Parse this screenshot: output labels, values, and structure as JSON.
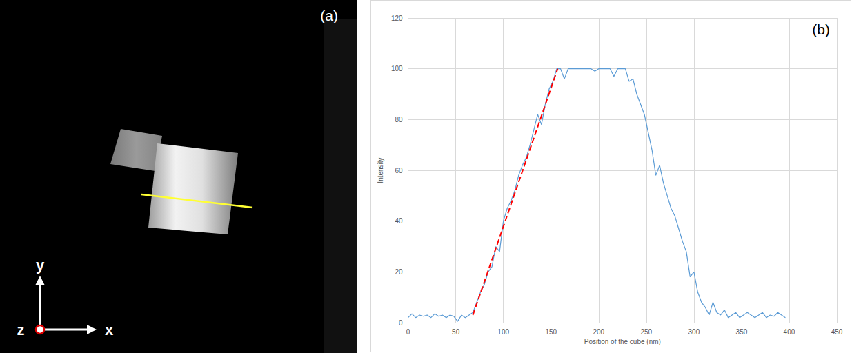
{
  "panel_a": {
    "label": "(a)",
    "axis_labels": {
      "x": "x",
      "y": "y",
      "z": "z"
    }
  },
  "chart_data": {
    "type": "line",
    "annotation": "(b)",
    "x_label": "Position of the cube (nm)",
    "y_label": "Intensity",
    "xlim": [
      0,
      450
    ],
    "xticks": [
      0,
      50,
      100,
      150,
      200,
      250,
      300,
      350,
      400,
      450
    ],
    "ylim": [
      0,
      120
    ],
    "yticks": [
      0,
      20,
      40,
      60,
      80,
      100,
      120
    ],
    "grid": true,
    "series": [
      {
        "color": "#5b9bd5",
        "line_style": "solid",
        "x": [
          0,
          4,
          8,
          12,
          16,
          20,
          24,
          28,
          32,
          36,
          40,
          44,
          48,
          52,
          56,
          60,
          64,
          68,
          72,
          76,
          80,
          84,
          88,
          92,
          96,
          100,
          104,
          108,
          112,
          116,
          120,
          124,
          128,
          132,
          136,
          140,
          144,
          148,
          152,
          156,
          160,
          164,
          168,
          172,
          176,
          180,
          184,
          188,
          192,
          196,
          200,
          204,
          208,
          212,
          216,
          220,
          224,
          228,
          232,
          236,
          240,
          244,
          248,
          252,
          256,
          260,
          264,
          268,
          272,
          276,
          280,
          284,
          288,
          292,
          296,
          300,
          304,
          308,
          312,
          316,
          320,
          324,
          328,
          332,
          336,
          340,
          344,
          348,
          352,
          356,
          360,
          364,
          368,
          372,
          376,
          380,
          384,
          388,
          392,
          396
        ],
        "values": [
          2,
          3.5,
          2,
          3,
          2.5,
          3,
          2,
          3.5,
          2.5,
          3,
          2,
          3,
          2.5,
          0.5,
          3,
          2,
          3,
          4,
          8,
          12,
          15,
          20,
          22,
          30,
          28,
          40,
          45,
          48,
          52,
          58,
          62,
          65,
          70,
          76,
          82,
          78,
          86,
          92,
          95,
          100,
          100,
          96,
          100,
          100,
          100,
          100,
          100,
          100,
          100,
          99,
          100,
          100,
          100,
          100,
          97,
          100,
          100,
          100,
          95,
          96,
          90,
          86,
          82,
          75,
          68,
          58,
          62,
          55,
          50,
          45,
          42,
          37,
          32,
          28,
          18,
          20,
          12,
          8,
          6,
          3,
          8,
          4,
          3,
          5,
          2,
          3,
          4,
          2,
          3,
          4,
          3,
          2,
          3,
          4,
          2,
          3,
          2.5,
          4,
          3,
          2
        ]
      },
      {
        "color": "#ff0000",
        "line_style": "dashed",
        "x": [
          68,
          157
        ],
        "values": [
          3,
          100
        ]
      }
    ]
  }
}
